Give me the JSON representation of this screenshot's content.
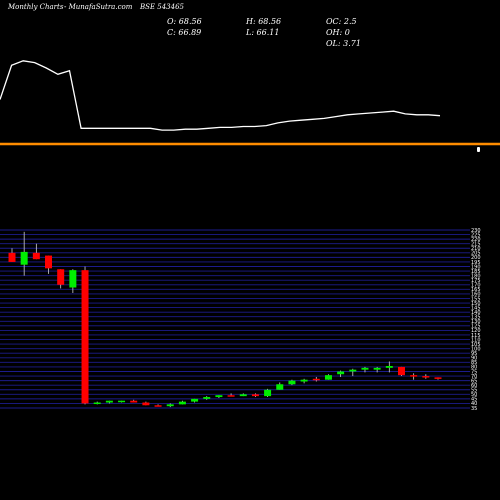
{
  "header": {
    "chart_label": "Monthly Charts",
    "site_label": "- MunafaSutra.com",
    "symbol_label": "BSE 543465"
  },
  "ohlc": {
    "open": "O: 68.56",
    "close": "C: 66.89",
    "high": "H: 68.56",
    "low": "L: 66.11",
    "oc": "OC: 2.5",
    "oh": "OH: 0",
    "ol": "OL: 3.71"
  },
  "colors": {
    "background": "#000000",
    "up": "#00ee00",
    "down": "#ff0000",
    "grid": "#1c1c8c",
    "separator": "#ff8c00",
    "line": "#ffffff"
  },
  "chart_data": [
    {
      "type": "line",
      "series": [
        {
          "values": [
            45,
            83,
            88,
            86,
            80,
            73,
            77,
            13,
            13,
            13,
            13,
            13,
            13,
            13,
            11,
            11,
            12,
            12,
            13,
            14,
            14,
            15,
            15,
            16,
            19,
            21,
            22,
            23,
            24,
            26,
            28,
            29,
            30,
            31,
            32,
            29,
            28,
            28,
            27
          ]
        }
      ]
    },
    {
      "type": "candlestick",
      "ylim": [
        35,
        230
      ],
      "y_ticks": [
        "230",
        "225",
        "220",
        "215",
        "210",
        "205",
        "200",
        "195",
        "190",
        "185",
        "180",
        "175",
        "170",
        "165",
        "160",
        "155",
        "150",
        "145",
        "140",
        "135",
        "130",
        "125",
        "120",
        "115",
        "110",
        "105",
        "100",
        "95",
        "90",
        "85",
        "80",
        "75",
        "70",
        "65",
        "60",
        "55",
        "50",
        "45",
        "40",
        "35"
      ],
      "candles": [
        {
          "o": 205,
          "h": 210,
          "l": 195,
          "c": 195
        },
        {
          "o": 192,
          "h": 228,
          "l": 180,
          "c": 206
        },
        {
          "o": 205,
          "h": 215,
          "l": 198,
          "c": 198
        },
        {
          "o": 202,
          "h": 202,
          "l": 182,
          "c": 188
        },
        {
          "o": 187,
          "h": 187,
          "l": 166,
          "c": 170
        },
        {
          "o": 167,
          "h": 187,
          "l": 161,
          "c": 186
        },
        {
          "o": 186,
          "h": 190,
          "l": 39,
          "c": 40
        },
        {
          "o": 40,
          "h": 42,
          "l": 39,
          "c": 41
        },
        {
          "o": 41,
          "h": 43,
          "l": 40,
          "c": 43
        },
        {
          "o": 42,
          "h": 43,
          "l": 41,
          "c": 43
        },
        {
          "o": 43,
          "h": 44,
          "l": 41,
          "c": 41
        },
        {
          "o": 41,
          "h": 42,
          "l": 38,
          "c": 38
        },
        {
          "o": 38,
          "h": 39,
          "l": 37,
          "c": 37
        },
        {
          "o": 37,
          "h": 40,
          "l": 36,
          "c": 39
        },
        {
          "o": 39,
          "h": 43,
          "l": 39,
          "c": 42
        },
        {
          "o": 42,
          "h": 45,
          "l": 41,
          "c": 45
        },
        {
          "o": 45,
          "h": 48,
          "l": 44,
          "c": 47
        },
        {
          "o": 47,
          "h": 49,
          "l": 46,
          "c": 49
        },
        {
          "o": 49,
          "h": 51,
          "l": 48,
          "c": 48
        },
        {
          "o": 48,
          "h": 51,
          "l": 48,
          "c": 50
        },
        {
          "o": 50,
          "h": 51,
          "l": 47,
          "c": 48
        },
        {
          "o": 48,
          "h": 56,
          "l": 47,
          "c": 55
        },
        {
          "o": 55,
          "h": 63,
          "l": 55,
          "c": 61
        },
        {
          "o": 61,
          "h": 66,
          "l": 60,
          "c": 65
        },
        {
          "o": 64,
          "h": 67,
          "l": 62,
          "c": 66
        },
        {
          "o": 67,
          "h": 69,
          "l": 64,
          "c": 66
        },
        {
          "o": 66,
          "h": 72,
          "l": 66,
          "c": 71
        },
        {
          "o": 72,
          "h": 76,
          "l": 69,
          "c": 75
        },
        {
          "o": 75,
          "h": 78,
          "l": 70,
          "c": 77
        },
        {
          "o": 77,
          "h": 80,
          "l": 74,
          "c": 79
        },
        {
          "o": 77,
          "h": 80,
          "l": 74,
          "c": 79
        },
        {
          "o": 79,
          "h": 86,
          "l": 74,
          "c": 81
        },
        {
          "o": 80,
          "h": 80,
          "l": 70,
          "c": 71
        },
        {
          "o": 71,
          "h": 73,
          "l": 66,
          "c": 70
        },
        {
          "o": 70,
          "h": 72,
          "l": 67,
          "c": 69
        },
        {
          "o": 68.56,
          "h": 68.56,
          "l": 66.11,
          "c": 66.89
        }
      ]
    }
  ]
}
